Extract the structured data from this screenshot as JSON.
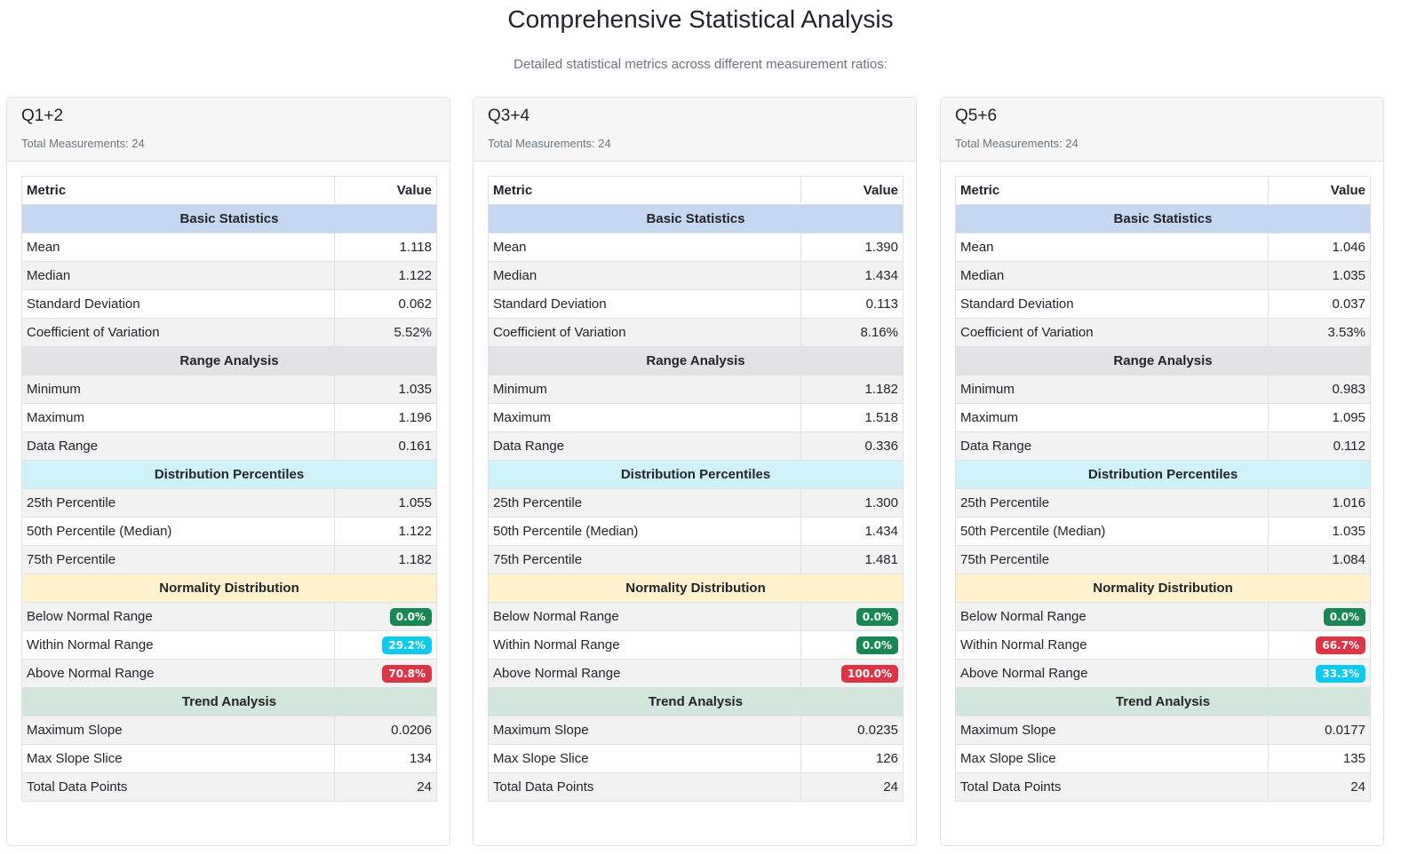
{
  "page": {
    "title": "Comprehensive Statistical Analysis",
    "subtitle": "Detailed statistical metrics across different measurement ratios:"
  },
  "colors": {
    "badge_green": "#198754",
    "badge_cyan": "#0dcaf0",
    "badge_red": "#dc3545",
    "section_basic": "#c6d7f2",
    "section_range": "#e2e3e5",
    "section_distribution": "#cff1f8",
    "section_normality": "#fff2cc",
    "section_trend": "#d2e6dc"
  },
  "table_headers": {
    "metric": "Metric",
    "value": "Value"
  },
  "sections": {
    "basic": "Basic Statistics",
    "range": "Range Analysis",
    "distribution": "Distribution Percentiles",
    "normality": "Normality Distribution",
    "trend": "Trend Analysis"
  },
  "labels": {
    "mean": "Mean",
    "median": "Median",
    "std": "Standard Deviation",
    "cv": "Coefficient of Variation",
    "min": "Minimum",
    "max": "Maximum",
    "range": "Data Range",
    "p25": "25th Percentile",
    "p50": "50th Percentile (Median)",
    "p75": "75th Percentile",
    "below": "Below Normal Range",
    "within": "Within Normal Range",
    "above": "Above Normal Range",
    "max_slope": "Maximum Slope",
    "max_slope_slice": "Max Slope Slice",
    "total_points": "Total Data Points"
  },
  "cards": [
    {
      "title": "Q1+2",
      "count": "Total Measurements: 24",
      "mean": "1.118",
      "median": "1.122",
      "std": "0.062",
      "cv": "5.52%",
      "min": "1.035",
      "max": "1.196",
      "range": "0.161",
      "p25": "1.055",
      "p50": "1.122",
      "p75": "1.182",
      "below": "0.0%",
      "below_color": "green",
      "within": "29.2%",
      "within_color": "cyan",
      "above": "70.8%",
      "above_color": "red",
      "max_slope": "0.0206",
      "max_slope_slice": "134",
      "total_points": "24"
    },
    {
      "title": "Q3+4",
      "count": "Total Measurements: 24",
      "mean": "1.390",
      "median": "1.434",
      "std": "0.113",
      "cv": "8.16%",
      "min": "1.182",
      "max": "1.518",
      "range": "0.336",
      "p25": "1.300",
      "p50": "1.434",
      "p75": "1.481",
      "below": "0.0%",
      "below_color": "green",
      "within": "0.0%",
      "within_color": "green",
      "above": "100.0%",
      "above_color": "red",
      "max_slope": "0.0235",
      "max_slope_slice": "126",
      "total_points": "24"
    },
    {
      "title": "Q5+6",
      "count": "Total Measurements: 24",
      "mean": "1.046",
      "median": "1.035",
      "std": "0.037",
      "cv": "3.53%",
      "min": "0.983",
      "max": "1.095",
      "range": "0.112",
      "p25": "1.016",
      "p50": "1.035",
      "p75": "1.084",
      "below": "0.0%",
      "below_color": "green",
      "within": "66.7%",
      "within_color": "red",
      "above": "33.3%",
      "above_color": "cyan",
      "max_slope": "0.0177",
      "max_slope_slice": "135",
      "total_points": "24"
    }
  ]
}
